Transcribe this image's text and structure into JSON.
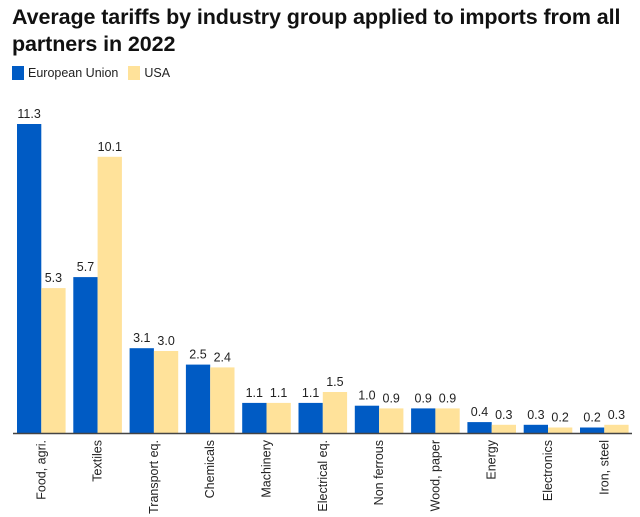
{
  "colors": {
    "eu": "#005BC4",
    "usa": "#FFE29A",
    "axis": "#444444"
  },
  "chart_data": {
    "type": "bar",
    "title": "Average tariffs by industry group applied to imports from all partners in 2022",
    "xlabel": "",
    "ylabel": "",
    "ylim": [
      0,
      11.3
    ],
    "grid": false,
    "legend_position": "top-left",
    "categories": [
      "Food, agri.",
      "Textiles",
      "Transport eq.",
      "Chemicals",
      "Machinery",
      "Electrical eq.",
      "Non ferrous",
      "Wood, paper",
      "Energy",
      "Electronics",
      "Iron, steel"
    ],
    "series": [
      {
        "name": "European Union",
        "values": [
          11.3,
          5.7,
          3.1,
          2.5,
          1.1,
          1.1,
          1.0,
          0.9,
          0.4,
          0.3,
          0.2
        ]
      },
      {
        "name": "USA",
        "values": [
          5.3,
          10.1,
          3.0,
          2.4,
          1.1,
          1.5,
          0.9,
          0.9,
          0.3,
          0.2,
          0.3
        ]
      }
    ]
  }
}
